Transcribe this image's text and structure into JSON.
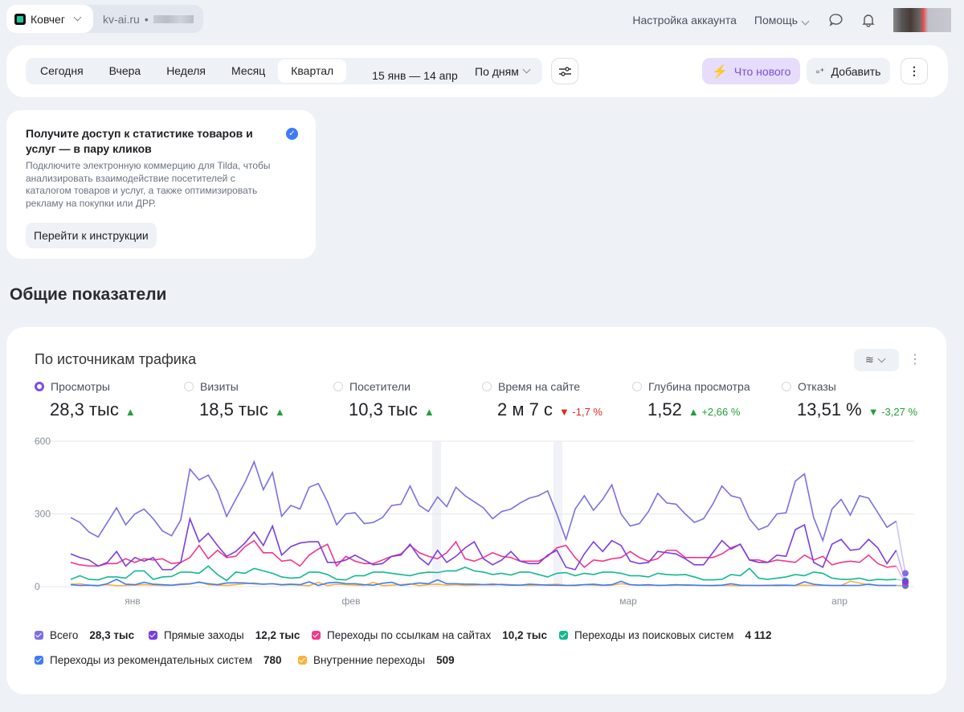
{
  "header": {
    "counter_name": "Ковчег",
    "site": "kv-ai.ru",
    "account_settings": "Настройка аккаунта",
    "help": "Помощь"
  },
  "toolbar": {
    "periods": [
      "Сегодня",
      "Вчера",
      "Неделя",
      "Месяц",
      "Квартал"
    ],
    "active_period": "Квартал",
    "date_range": "15 янв — 14 апр",
    "grouping": "По дням",
    "whats_new": "Что нового",
    "add": "Добавить",
    "accent": "#7b4fe0"
  },
  "banner": {
    "title": "Получите доступ к статистике товаров и услуг — в пару кликов",
    "text": "Подключите электронную коммерцию для Tilda, чтобы анализировать взаимодействие посетителей с каталогом товаров и услуг, а также оптимизировать рекламу на покупки или ДРР.",
    "button": "Перейти к инструкции"
  },
  "section_title": "Общие показатели",
  "card": {
    "title": "По источникам трафика",
    "metrics": [
      {
        "label": "Просмотры",
        "value": "28,3 тыс",
        "trend": "up",
        "delta": "",
        "selected": true
      },
      {
        "label": "Визиты",
        "value": "18,5 тыс",
        "trend": "up",
        "delta": ""
      },
      {
        "label": "Посетители",
        "value": "10,3 тыс",
        "trend": "up",
        "delta": ""
      },
      {
        "label": "Время на сайте",
        "value": "2 м 7 с",
        "trend": "down",
        "delta": "-1,7 %"
      },
      {
        "label": "Глубина просмотра",
        "value": "1,52",
        "trend": "up",
        "delta": "+2,66 %"
      },
      {
        "label": "Отказы",
        "value": "13,51 %",
        "trend": "down-good",
        "delta": "-3,27 %"
      }
    ]
  },
  "chart_data": {
    "type": "line",
    "ylim": [
      0,
      600
    ],
    "yticks": [
      "0",
      "300",
      "600"
    ],
    "xticks": [
      "янв",
      "фев",
      "мар",
      "апр"
    ],
    "x_range": [
      "15 янв",
      "14 апр"
    ],
    "grid": true,
    "legend_position": "bottom",
    "series": [
      {
        "name": "Всего",
        "total": "28,3 тыс",
        "color": "#7b6fe6",
        "values": [
          285,
          265,
          225,
          205,
          265,
          325,
          255,
          300,
          320,
          280,
          230,
          210,
          275,
          485,
          440,
          460,
          395,
          290,
          360,
          430,
          515,
          400,
          470,
          290,
          335,
          320,
          410,
          425,
          350,
          255,
          300,
          305,
          260,
          265,
          285,
          335,
          340,
          415,
          335,
          310,
          370,
          330,
          410,
          375,
          350,
          325,
          280,
          310,
          320,
          345,
          365,
          375,
          395,
          300,
          195,
          320,
          375,
          315,
          360,
          420,
          300,
          250,
          260,
          310,
          385,
          345,
          340,
          300,
          265,
          280,
          340,
          415,
          375,
          365,
          280,
          235,
          250,
          300,
          305,
          435,
          465,
          285,
          190,
          320,
          360,
          295,
          375,
          365,
          305,
          245,
          270,
          55
        ]
      },
      {
        "name": "Прямые заходы",
        "total": "12,2 тыс",
        "color": "#7a3ee0",
        "values": [
          135,
          120,
          110,
          85,
          100,
          145,
          85,
          120,
          105,
          120,
          70,
          70,
          100,
          280,
          185,
          220,
          170,
          125,
          145,
          180,
          225,
          170,
          250,
          130,
          165,
          180,
          185,
          185,
          100,
          100,
          110,
          130,
          110,
          90,
          95,
          125,
          130,
          175,
          120,
          90,
          150,
          100,
          125,
          160,
          185,
          115,
          90,
          110,
          145,
          105,
          95,
          95,
          130,
          150,
          80,
          70,
          135,
          185,
          145,
          190,
          170,
          105,
          95,
          100,
          145,
          140,
          135,
          115,
          90,
          90,
          140,
          190,
          155,
          175,
          110,
          100,
          100,
          130,
          125,
          235,
          255,
          100,
          80,
          175,
          195,
          150,
          155,
          195,
          160,
          95,
          150,
          20
        ]
      },
      {
        "name": "Переходы по ссылкам на сайтах",
        "total": "10,2 тыс",
        "color": "#f5368d",
        "values": [
          100,
          90,
          85,
          85,
          95,
          95,
          115,
          100,
          115,
          110,
          115,
          95,
          100,
          120,
          170,
          115,
          150,
          120,
          125,
          165,
          190,
          140,
          140,
          105,
          110,
          85,
          130,
          155,
          175,
          85,
          125,
          105,
          95,
          95,
          110,
          125,
          135,
          170,
          140,
          125,
          115,
          140,
          185,
          115,
          105,
          120,
          140,
          125,
          120,
          105,
          105,
          105,
          125,
          160,
          170,
          120,
          80,
          110,
          105,
          115,
          120,
          145,
          120,
          105,
          115,
          150,
          150,
          120,
          120,
          120,
          120,
          135,
          160,
          175,
          110,
          110,
          100,
          110,
          105,
          100,
          130,
          110,
          125,
          90,
          100,
          105,
          100,
          130,
          95,
          80,
          85,
          15
        ]
      },
      {
        "name": "Переходы из поисковых систем",
        "total": "4 112",
        "color": "#14b890",
        "values": [
          30,
          45,
          30,
          28,
          40,
          40,
          35,
          65,
          65,
          30,
          40,
          42,
          60,
          60,
          55,
          85,
          50,
          25,
          60,
          55,
          75,
          65,
          55,
          40,
          35,
          38,
          60,
          60,
          50,
          30,
          28,
          45,
          45,
          60,
          60,
          55,
          50,
          45,
          55,
          60,
          58,
          65,
          65,
          80,
          65,
          60,
          50,
          55,
          48,
          60,
          60,
          50,
          40,
          55,
          58,
          45,
          55,
          50,
          60,
          60,
          55,
          45,
          45,
          40,
          55,
          50,
          48,
          50,
          40,
          28,
          28,
          30,
          50,
          45,
          75,
          35,
          30,
          35,
          40,
          50,
          45,
          60,
          55,
          35,
          30,
          30,
          35,
          25,
          30,
          28,
          30,
          25
        ]
      },
      {
        "name": "Переходы из рекомендательных систем",
        "total": "780",
        "color": "#3d7cf7",
        "values": [
          8,
          5,
          6,
          4,
          12,
          30,
          10,
          8,
          18,
          10,
          8,
          6,
          10,
          12,
          18,
          12,
          8,
          15,
          16,
          15,
          12,
          10,
          12,
          8,
          10,
          8,
          20,
          5,
          15,
          18,
          12,
          12,
          8,
          6,
          14,
          18,
          5,
          10,
          15,
          12,
          28,
          12,
          12,
          10,
          10,
          8,
          10,
          8,
          6,
          6,
          10,
          8,
          6,
          6,
          5,
          6,
          8,
          10,
          6,
          8,
          22,
          8,
          6,
          8,
          5,
          6,
          8,
          6,
          6,
          5,
          5,
          6,
          12,
          6,
          5,
          5,
          5,
          6,
          6,
          5,
          20,
          10,
          6,
          5,
          5,
          5,
          5,
          10,
          5,
          5,
          5,
          5
        ]
      },
      {
        "name": "Внутренние переходы",
        "total": "509",
        "color": "#fbb13c",
        "values": [
          10,
          12,
          6,
          5,
          8,
          4,
          5,
          6,
          8,
          6,
          5,
          5,
          8,
          10,
          20,
          8,
          6,
          5,
          8,
          12,
          15,
          10,
          12,
          6,
          8,
          6,
          4,
          18,
          4,
          10,
          8,
          6,
          5,
          18,
          4,
          6,
          8,
          12,
          4,
          8,
          10,
          6,
          8,
          5,
          6,
          8,
          6,
          10,
          8,
          6,
          5,
          6,
          8,
          10,
          6,
          4,
          8,
          6,
          5,
          6,
          12,
          8,
          6,
          5,
          6,
          5,
          6,
          8,
          6,
          5,
          4,
          5,
          5,
          4,
          6,
          5,
          6,
          4,
          5,
          5,
          6,
          5,
          6,
          5,
          5,
          22,
          15,
          8,
          6,
          5,
          5,
          2
        ]
      }
    ]
  }
}
